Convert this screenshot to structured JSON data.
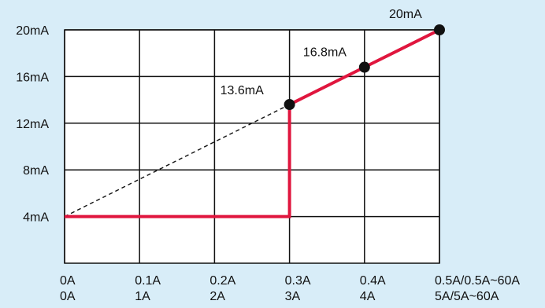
{
  "chart_data": {
    "type": "line",
    "x_ticks": [
      {
        "value": 0,
        "primary": "0A",
        "secondary": "0A"
      },
      {
        "value": 0.1,
        "primary": "0.1A",
        "secondary": "1A"
      },
      {
        "value": 0.2,
        "primary": "0.2A",
        "secondary": "2A"
      },
      {
        "value": 0.3,
        "primary": "0.3A",
        "secondary": "3A"
      },
      {
        "value": 0.4,
        "primary": "0.4A",
        "secondary": "4A"
      },
      {
        "value": 0.5,
        "primary": "0.5A/0.5A~60A",
        "secondary": "5A/5A~60A"
      }
    ],
    "y_ticks": [
      {
        "value": 4,
        "label": "4mA"
      },
      {
        "value": 8,
        "label": "8mA"
      },
      {
        "value": 12,
        "label": "12mA"
      },
      {
        "value": 16,
        "label": "16mA"
      },
      {
        "value": 20,
        "label": "20mA"
      }
    ],
    "xlim": [
      0,
      0.5
    ],
    "ylim": [
      0,
      20
    ],
    "grid": true,
    "series": [
      {
        "values": [
          {
            "x": 0,
            "y": 4
          },
          {
            "x": 0.3,
            "y": 4
          },
          {
            "x": 0.3,
            "y": 13.6
          },
          {
            "x": 0.4,
            "y": 16.8
          },
          {
            "x": 0.5,
            "y": 20
          }
        ],
        "color": "#e0163e",
        "style": "solid"
      },
      {
        "values": [
          {
            "x": 0,
            "y": 4
          },
          {
            "x": 0.3,
            "y": 13.6
          }
        ],
        "color": "#111111",
        "style": "dashed"
      }
    ],
    "markers": [
      {
        "x": 0.3,
        "y": 13.6,
        "label": "13.6mA"
      },
      {
        "x": 0.4,
        "y": 16.8,
        "label": "16.8mA"
      },
      {
        "x": 0.5,
        "y": 20,
        "label": "20mA"
      }
    ],
    "colors": {
      "background": "#d8edf8",
      "plot_background": "#ffffff",
      "grid": "#111111",
      "accent": "#e0163e",
      "marker": "#111111"
    }
  }
}
